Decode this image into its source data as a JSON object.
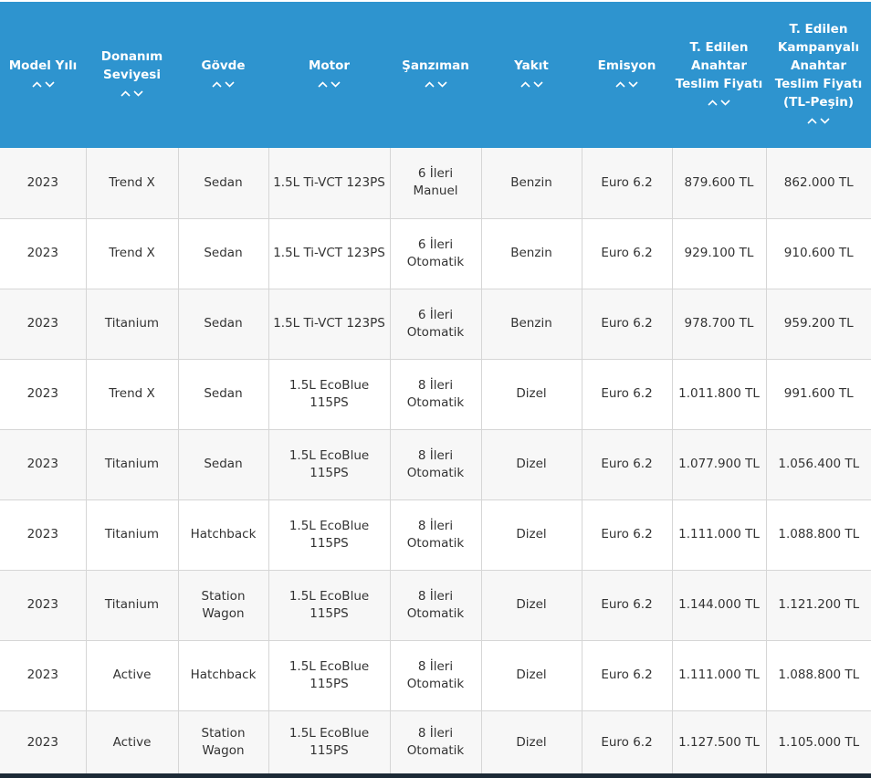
{
  "table": {
    "headers": [
      "Model Yılı",
      "Donanım Seviyesi",
      "Gövde",
      "Motor",
      "Şanzıman",
      "Yakıt",
      "Emisyon",
      "T. Edilen Anahtar Teslim Fiyatı",
      "T. Edilen Kampanyalı Anahtar Teslim Fiyatı (TL-Peşin)"
    ],
    "sort_icons": [
      "chevron-up-icon",
      "chevron-down-icon"
    ],
    "header_color": "#2e94cf",
    "rows": [
      [
        "2023",
        "Trend X",
        "Sedan",
        "1.5L Ti-VCT 123PS",
        "6 İleri Manuel",
        "Benzin",
        "Euro 6.2",
        "879.600 TL",
        "862.000 TL"
      ],
      [
        "2023",
        "Trend X",
        "Sedan",
        "1.5L Ti-VCT 123PS",
        "6 İleri Otomatik",
        "Benzin",
        "Euro 6.2",
        "929.100 TL",
        "910.600 TL"
      ],
      [
        "2023",
        "Titanium",
        "Sedan",
        "1.5L Ti-VCT 123PS",
        "6 İleri Otomatik",
        "Benzin",
        "Euro 6.2",
        "978.700 TL",
        "959.200 TL"
      ],
      [
        "2023",
        "Trend X",
        "Sedan",
        "1.5L EcoBlue 115PS",
        "8 İleri Otomatik",
        "Dizel",
        "Euro 6.2",
        "1.011.800 TL",
        "991.600 TL"
      ],
      [
        "2023",
        "Titanium",
        "Sedan",
        "1.5L EcoBlue 115PS",
        "8 İleri Otomatik",
        "Dizel",
        "Euro 6.2",
        "1.077.900 TL",
        "1.056.400 TL"
      ],
      [
        "2023",
        "Titanium",
        "Hatchback",
        "1.5L EcoBlue 115PS",
        "8 İleri Otomatik",
        "Dizel",
        "Euro 6.2",
        "1.111.000 TL",
        "1.088.800 TL"
      ],
      [
        "2023",
        "Titanium",
        "Station Wagon",
        "1.5L EcoBlue 115PS",
        "8 İleri Otomatik",
        "Dizel",
        "Euro 6.2",
        "1.144.000 TL",
        "1.121.200 TL"
      ],
      [
        "2023",
        "Active",
        "Hatchback",
        "1.5L EcoBlue 115PS",
        "8 İleri Otomatik",
        "Dizel",
        "Euro 6.2",
        "1.111.000 TL",
        "1.088.800 TL"
      ],
      [
        "2023",
        "Active",
        "Station Wagon",
        "1.5L EcoBlue 115PS",
        "8 İleri Otomatik",
        "Dizel",
        "Euro 6.2",
        "1.127.500 TL",
        "1.105.000 TL"
      ]
    ]
  }
}
